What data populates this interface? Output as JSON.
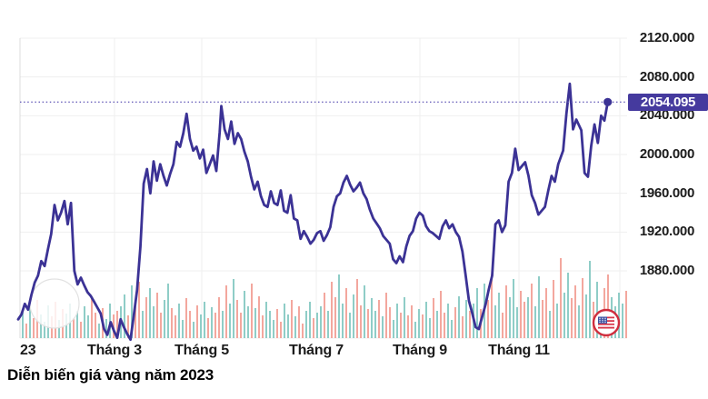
{
  "caption": "Diễn biến giá vàng năm 2023",
  "price_box": {
    "value": "2054.095",
    "bg": "#453a9e",
    "text_color": "#ffffff"
  },
  "icons": {
    "bottom_right": "us-flag-icon"
  },
  "chart_data": {
    "type": "line",
    "title": "Diễn biến giá vàng năm 2023",
    "x_ticks": [
      "23",
      "Tháng 3",
      "Tháng 5",
      "Tháng 7",
      "Tháng 9",
      "Tháng 11"
    ],
    "y_ticks": [
      "2120.000",
      "2080.000",
      "2040.000",
      "2000.000",
      "1960.000",
      "1920.000",
      "1880.000"
    ],
    "ylim": [
      1805,
      2125
    ],
    "grid": true,
    "last_price": 2054.095,
    "last_price_label": "2054.095",
    "line_color": "#3b3295",
    "dotted_line_color": "#6f66bd",
    "grid_color": "#efefef",
    "axis_color": "#dcdcdc",
    "volume_colors": {
      "up": "#8fcdc7",
      "down": "#f3a79e"
    },
    "price_points": [
      [
        0,
        1830
      ],
      [
        2,
        1835
      ],
      [
        4,
        1846
      ],
      [
        6,
        1840
      ],
      [
        8,
        1855
      ],
      [
        10,
        1868
      ],
      [
        12,
        1875
      ],
      [
        14,
        1890
      ],
      [
        16,
        1885
      ],
      [
        18,
        1902
      ],
      [
        20,
        1918
      ],
      [
        22,
        1948
      ],
      [
        24,
        1932
      ],
      [
        26,
        1940
      ],
      [
        28,
        1952
      ],
      [
        30,
        1928
      ],
      [
        32,
        1950
      ],
      [
        34,
        1880
      ],
      [
        36,
        1866
      ],
      [
        38,
        1873
      ],
      [
        40,
        1865
      ],
      [
        42,
        1858
      ],
      [
        44,
        1854
      ],
      [
        46,
        1848
      ],
      [
        48,
        1842
      ],
      [
        50,
        1836
      ],
      [
        52,
        1820
      ],
      [
        54,
        1814
      ],
      [
        56,
        1827
      ],
      [
        58,
        1818
      ],
      [
        60,
        1811
      ],
      [
        62,
        1830
      ],
      [
        64,
        1822
      ],
      [
        66,
        1815
      ],
      [
        68,
        1809
      ],
      [
        70,
        1834
      ],
      [
        72,
        1860
      ],
      [
        74,
        1905
      ],
      [
        76,
        1970
      ],
      [
        78,
        1985
      ],
      [
        80,
        1960
      ],
      [
        82,
        1993
      ],
      [
        84,
        1973
      ],
      [
        86,
        1990
      ],
      [
        88,
        1978
      ],
      [
        90,
        1968
      ],
      [
        92,
        1980
      ],
      [
        94,
        1990
      ],
      [
        96,
        2013
      ],
      [
        98,
        2008
      ],
      [
        100,
        2022
      ],
      [
        102,
        2042
      ],
      [
        104,
        2016
      ],
      [
        106,
        2004
      ],
      [
        108,
        2008
      ],
      [
        110,
        1996
      ],
      [
        112,
        2005
      ],
      [
        114,
        1981
      ],
      [
        116,
        1990
      ],
      [
        118,
        1999
      ],
      [
        120,
        1983
      ],
      [
        122,
        2023
      ],
      [
        123,
        2050
      ],
      [
        125,
        2026
      ],
      [
        127,
        2016
      ],
      [
        129,
        2034
      ],
      [
        131,
        2011
      ],
      [
        133,
        2022
      ],
      [
        135,
        2016
      ],
      [
        137,
        2003
      ],
      [
        139,
        1993
      ],
      [
        141,
        1977
      ],
      [
        143,
        1964
      ],
      [
        145,
        1972
      ],
      [
        147,
        1957
      ],
      [
        149,
        1948
      ],
      [
        151,
        1946
      ],
      [
        153,
        1962
      ],
      [
        155,
        1950
      ],
      [
        157,
        1948
      ],
      [
        159,
        1963
      ],
      [
        161,
        1942
      ],
      [
        163,
        1940
      ],
      [
        165,
        1958
      ],
      [
        167,
        1934
      ],
      [
        169,
        1932
      ],
      [
        171,
        1913
      ],
      [
        173,
        1921
      ],
      [
        175,
        1915
      ],
      [
        177,
        1908
      ],
      [
        179,
        1912
      ],
      [
        181,
        1919
      ],
      [
        183,
        1921
      ],
      [
        185,
        1911
      ],
      [
        187,
        1917
      ],
      [
        189,
        1925
      ],
      [
        191,
        1946
      ],
      [
        193,
        1957
      ],
      [
        195,
        1960
      ],
      [
        197,
        1971
      ],
      [
        199,
        1978
      ],
      [
        201,
        1969
      ],
      [
        203,
        1962
      ],
      [
        205,
        1966
      ],
      [
        207,
        1971
      ],
      [
        209,
        1960
      ],
      [
        211,
        1954
      ],
      [
        213,
        1943
      ],
      [
        215,
        1934
      ],
      [
        217,
        1929
      ],
      [
        219,
        1924
      ],
      [
        221,
        1916
      ],
      [
        223,
        1912
      ],
      [
        225,
        1908
      ],
      [
        227,
        1892
      ],
      [
        229,
        1888
      ],
      [
        231,
        1895
      ],
      [
        233,
        1889
      ],
      [
        235,
        1905
      ],
      [
        237,
        1916
      ],
      [
        239,
        1921
      ],
      [
        241,
        1934
      ],
      [
        243,
        1940
      ],
      [
        245,
        1937
      ],
      [
        247,
        1926
      ],
      [
        249,
        1921
      ],
      [
        251,
        1919
      ],
      [
        253,
        1916
      ],
      [
        255,
        1913
      ],
      [
        257,
        1926
      ],
      [
        259,
        1932
      ],
      [
        261,
        1924
      ],
      [
        263,
        1928
      ],
      [
        265,
        1920
      ],
      [
        267,
        1915
      ],
      [
        269,
        1900
      ],
      [
        271,
        1875
      ],
      [
        273,
        1849
      ],
      [
        275,
        1836
      ],
      [
        277,
        1822
      ],
      [
        279,
        1820
      ],
      [
        281,
        1833
      ],
      [
        283,
        1845
      ],
      [
        285,
        1861
      ],
      [
        287,
        1875
      ],
      [
        289,
        1928
      ],
      [
        291,
        1932
      ],
      [
        293,
        1920
      ],
      [
        295,
        1927
      ],
      [
        297,
        1972
      ],
      [
        299,
        1981
      ],
      [
        301,
        2006
      ],
      [
        303,
        1984
      ],
      [
        305,
        1988
      ],
      [
        307,
        1992
      ],
      [
        309,
        1978
      ],
      [
        311,
        1958
      ],
      [
        313,
        1950
      ],
      [
        315,
        1938
      ],
      [
        317,
        1942
      ],
      [
        319,
        1946
      ],
      [
        321,
        1963
      ],
      [
        323,
        1978
      ],
      [
        325,
        1972
      ],
      [
        327,
        1990
      ],
      [
        330,
        2004
      ],
      [
        332,
        2042
      ],
      [
        334,
        2073
      ],
      [
        336,
        2026
      ],
      [
        338,
        2036
      ],
      [
        341,
        2025
      ],
      [
        343,
        1981
      ],
      [
        345,
        1977
      ],
      [
        347,
        2009
      ],
      [
        349,
        2031
      ],
      [
        351,
        2012
      ],
      [
        353,
        2040
      ],
      [
        355,
        2035
      ],
      [
        357,
        2054.095
      ]
    ],
    "volume_bars": {
      "heights": [
        28,
        16,
        34,
        22,
        42,
        26,
        18,
        36,
        24,
        40,
        20,
        32,
        27,
        38,
        22,
        30,
        18,
        35,
        25,
        45,
        28,
        16,
        33,
        21,
        38,
        26,
        30,
        35,
        48,
        25,
        58,
        40,
        62,
        30,
        45,
        55,
        35,
        50,
        28,
        42,
        60,
        33,
        25,
        38,
        20,
        44,
        30,
        18,
        36,
        26,
        40,
        22,
        34,
        28,
        45,
        30,
        58,
        38,
        65,
        42,
        28,
        52,
        35,
        60,
        33,
        46,
        25,
        40,
        30,
        20,
        32,
        18,
        38,
        26,
        42,
        24,
        35,
        16,
        30,
        40,
        22,
        28,
        35,
        50,
        30,
        62,
        45,
        70,
        38,
        55,
        28,
        48,
        65,
        36,
        58,
        32,
        44,
        30,
        42,
        24,
        50,
        34,
        20,
        38,
        28,
        45,
        25,
        36,
        18,
        32,
        26,
        40,
        22,
        44,
        30,
        52,
        28,
        38,
        20,
        34,
        46,
        24,
        42,
        30,
        38,
        55,
        32,
        60,
        42,
        70,
        36,
        50,
        28,
        58,
        45,
        65,
        34,
        52,
        40,
        45,
        60,
        35,
        68,
        42,
        55,
        30,
        64,
        38,
        88,
        50,
        72,
        44,
        58,
        36,
        66,
        48,
        85,
        40,
        62,
        30,
        55,
        70,
        45,
        35,
        50,
        38,
        52
      ],
      "pattern": "grgrrgggrrgrggrgrggrrgrggrrggrgrrgrggrrggrrggrrgrggrgrrgrggrrggrgrrgggrrggrgrrggrggrgrrggrggrrgrggrgrrggrgrrggrggrgrrggrgrgrggrgrrggrrgggrrgrggrrgrgrggrrgrggrggrrggggr"
    }
  }
}
